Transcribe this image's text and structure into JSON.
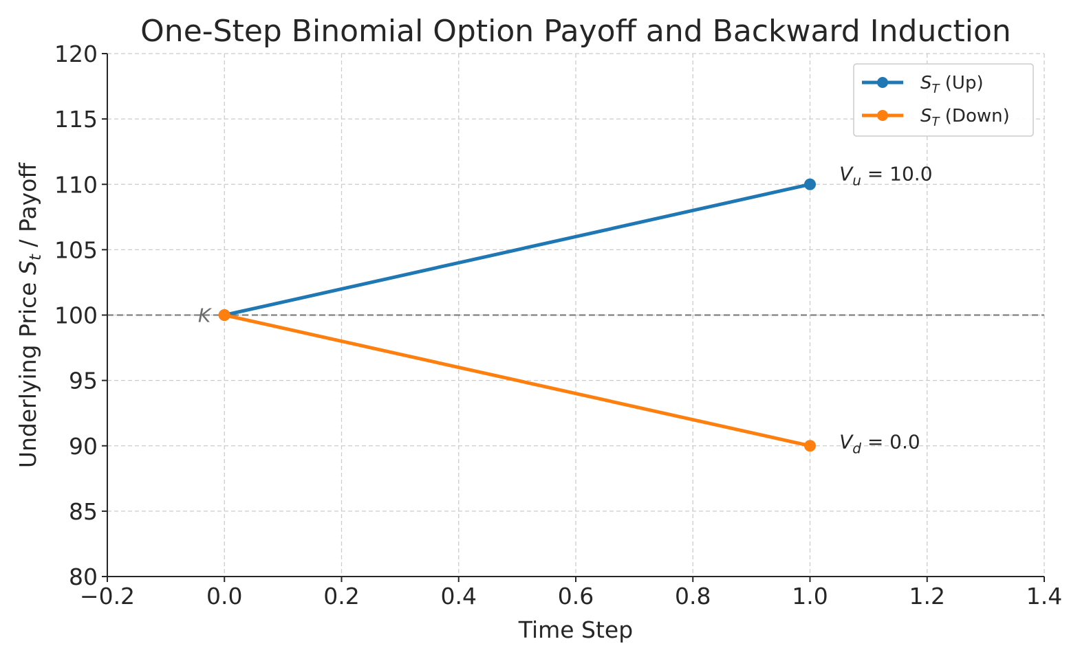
{
  "chart_data": {
    "type": "line",
    "title": "One-Step Binomial Option Payoff and Backward Induction",
    "xlabel": "Time Step",
    "ylabel": "Underlying Price S_t / Payoff",
    "ylabel_parts": {
      "before": "Underlying Price ",
      "sym": "S",
      "sub": "t",
      "after": " / Payoff"
    },
    "xlim": [
      -0.2,
      1.4
    ],
    "ylim": [
      80,
      120
    ],
    "xticks": [
      -0.2,
      0.0,
      0.2,
      0.4,
      0.6,
      0.8,
      1.0,
      1.2,
      1.4
    ],
    "xtick_labels": [
      "−0.2",
      "0.0",
      "0.2",
      "0.4",
      "0.6",
      "0.8",
      "1.0",
      "1.2",
      "1.4"
    ],
    "yticks": [
      80,
      85,
      90,
      95,
      100,
      105,
      110,
      115,
      120
    ],
    "ytick_labels": [
      "80",
      "85",
      "90",
      "95",
      "100",
      "105",
      "110",
      "115",
      "120"
    ],
    "grid": true,
    "legend_position": "top-right",
    "series": [
      {
        "name": "S_T (Up)",
        "legend_sym": "S",
        "legend_sub": "T",
        "legend_rest": " (Up)",
        "color": "#1f77b4",
        "x": [
          0.0,
          1.0
        ],
        "y": [
          100,
          110
        ]
      },
      {
        "name": "S_T (Down)",
        "legend_sym": "S",
        "legend_sub": "T",
        "legend_rest": " (Down)",
        "color": "#ff7f0e",
        "x": [
          0.0,
          1.0
        ],
        "y": [
          100,
          90
        ]
      }
    ],
    "strike": {
      "label": "K",
      "value": 100,
      "color": "#808080"
    },
    "annotations": [
      {
        "sym": "V",
        "sub": "u",
        "rest": " = 10.0",
        "x": 1.05,
        "y": 110
      },
      {
        "sym": "V",
        "sub": "d",
        "rest": " = 0.0",
        "x": 1.05,
        "y": 89.5
      }
    ]
  }
}
